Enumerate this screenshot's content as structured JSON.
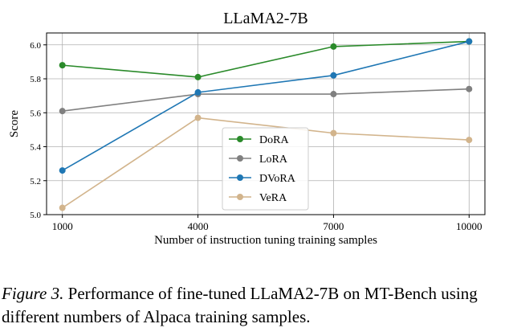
{
  "chart_data": {
    "type": "line",
    "title": "LLaMA2-7B",
    "xlabel": "Number of instruction tuning training samples",
    "ylabel": "Score",
    "categories": [
      "1000",
      "4000",
      "7000",
      "10000"
    ],
    "x": [
      1000,
      4000,
      7000,
      10000
    ],
    "xlim": [
      650,
      10350
    ],
    "ylim": [
      5.0,
      6.07
    ],
    "yticks": [
      "5.0",
      "5.2",
      "5.4",
      "5.6",
      "5.8",
      "6.0"
    ],
    "grid": true,
    "legend_position": "center",
    "series": [
      {
        "name": "DoRA",
        "color": "#2a8a2a",
        "values": [
          5.88,
          5.81,
          5.99,
          6.02
        ]
      },
      {
        "name": "LoRA",
        "color": "#808080",
        "values": [
          5.61,
          5.71,
          5.71,
          5.74
        ]
      },
      {
        "name": "DVoRA",
        "color": "#1f77b4",
        "values": [
          5.26,
          5.72,
          5.82,
          6.02
        ]
      },
      {
        "name": "VeRA",
        "color": "#d2b48c",
        "values": [
          5.04,
          5.57,
          5.48,
          5.44
        ]
      }
    ]
  },
  "caption": {
    "label": "Figure 3.",
    "text": " Performance of fine-tuned LLaMA2-7B on MT-Bench using different numbers of Alpaca training samples."
  }
}
